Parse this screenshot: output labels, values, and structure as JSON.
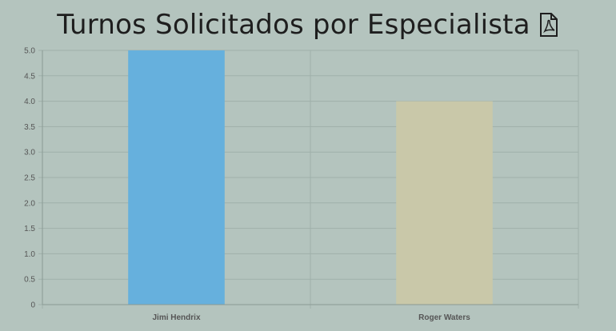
{
  "header": {
    "title": "Turnos Solicitados por Especialista",
    "pdf_icon": "pdf-file-icon"
  },
  "chart_data": {
    "type": "bar",
    "categories": [
      "Jimi Hendrix",
      "Roger Waters"
    ],
    "values": [
      5,
      4
    ],
    "colors": [
      "#66b0dd",
      "#c9c8a9"
    ],
    "title": "Turnos Solicitados por Especialista",
    "xlabel": "",
    "ylabel": "",
    "ylim": [
      0,
      5
    ],
    "yticks": [
      "0",
      "0.5",
      "1.0",
      "1.5",
      "2.0",
      "2.5",
      "3.0",
      "3.5",
      "4.0",
      "4.5",
      "5.0"
    ],
    "grid": true,
    "legend": "none"
  }
}
